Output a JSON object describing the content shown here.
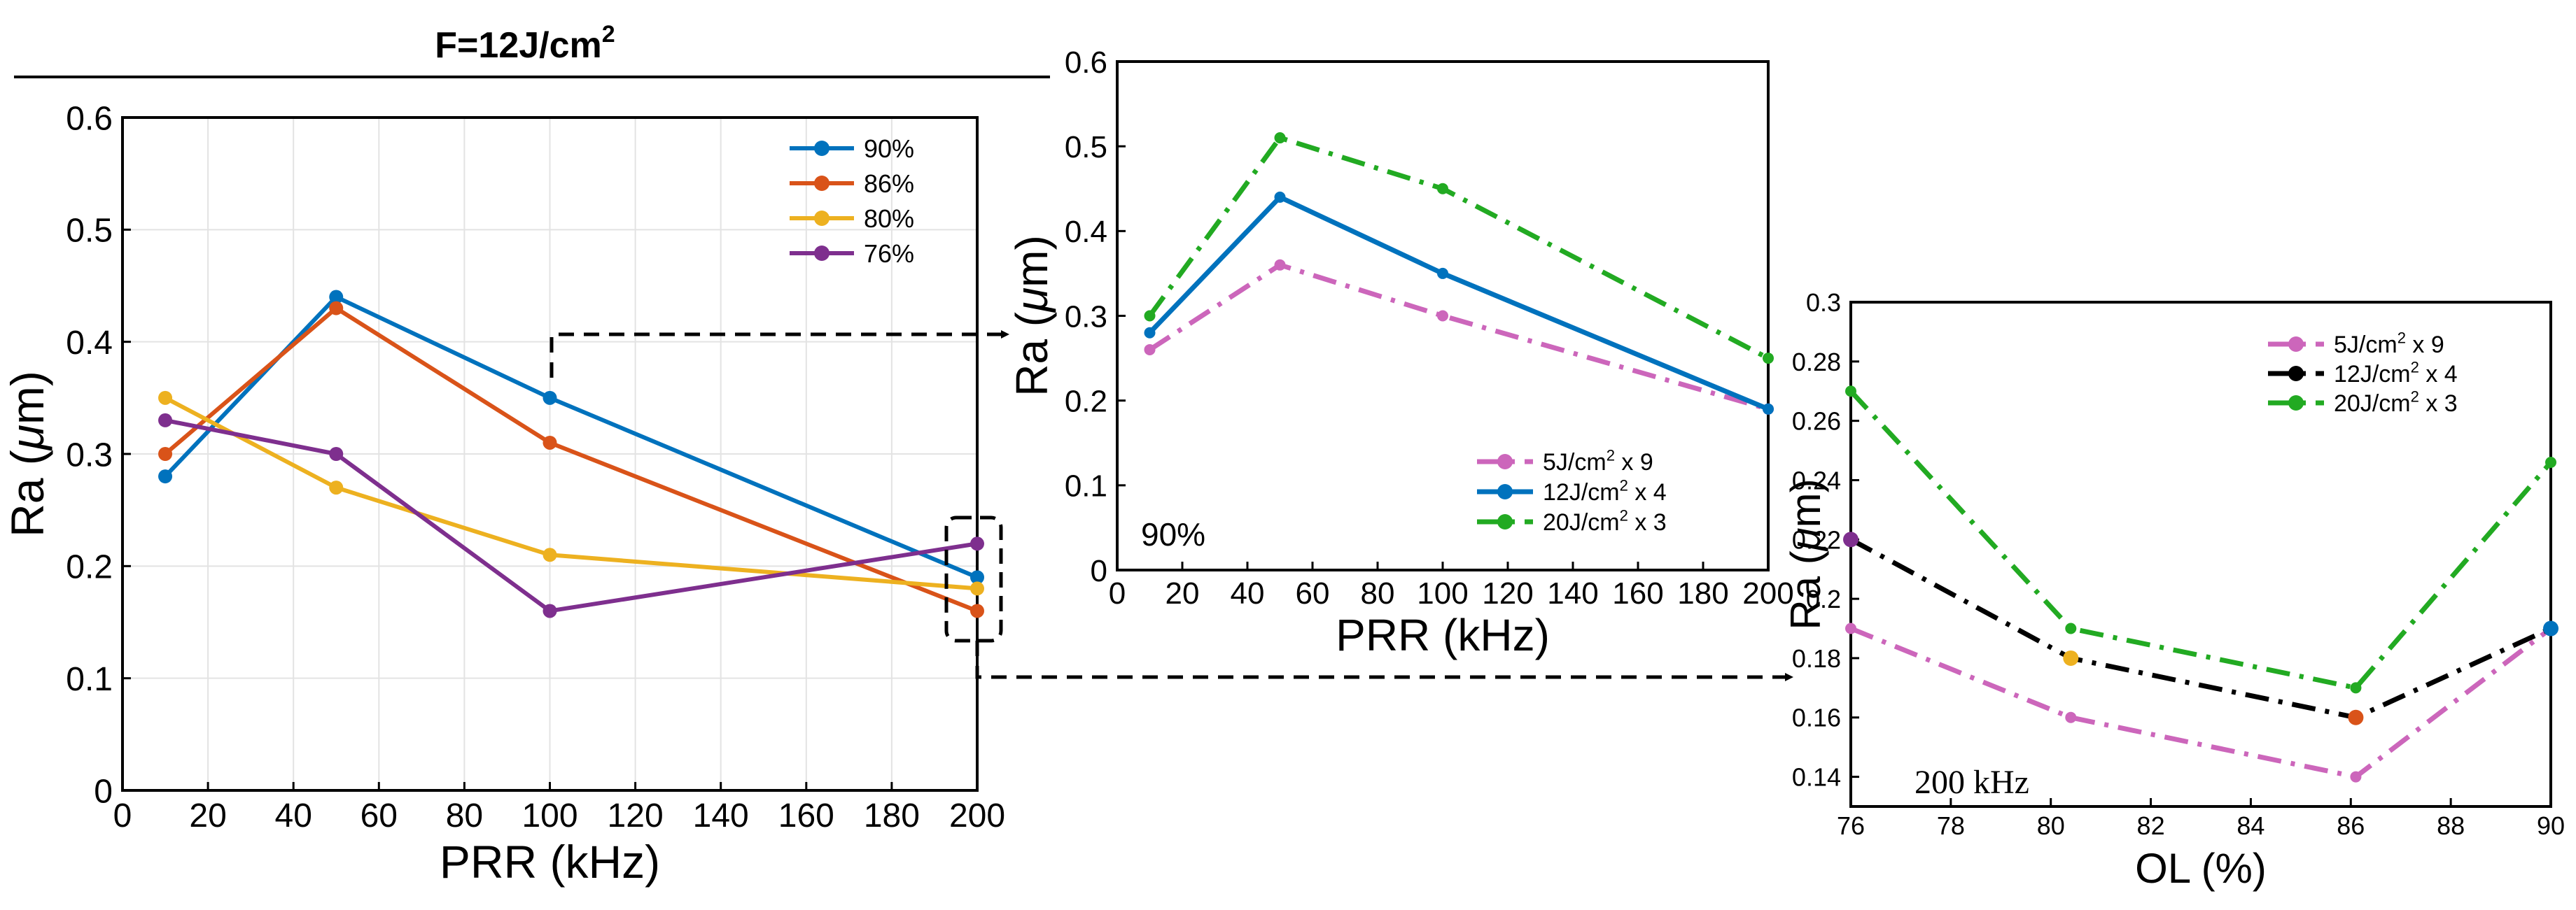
{
  "figure": {
    "header": {
      "prefix": "F=12J/cm",
      "sup": "2"
    }
  },
  "chart_data": [
    {
      "id": "left",
      "type": "line",
      "title": "",
      "xlabel": "PRR (kHz)",
      "ylabel_main": "Ra (",
      "ylabel_mu": "μ",
      "ylabel_tail": "m)",
      "xlim": [
        0,
        200
      ],
      "ylim": [
        0,
        0.6
      ],
      "xticks": [
        0,
        20,
        40,
        60,
        80,
        100,
        120,
        140,
        160,
        180,
        200
      ],
      "xtick_labels": [
        "0",
        "20",
        "40",
        "60",
        "80",
        "100",
        "120",
        "140",
        "160",
        "180",
        "200"
      ],
      "yticks": [
        0,
        0.1,
        0.2,
        0.3,
        0.4,
        0.5,
        0.6
      ],
      "ytick_labels": [
        "0",
        "0.1",
        "0.2",
        "0.3",
        "0.4",
        "0.5",
        "0.6"
      ],
      "grid": true,
      "legend_position": "top-right",
      "series": [
        {
          "name": "90%",
          "color": "#0072BD",
          "dash": "solid",
          "x": [
            10,
            50,
            100,
            200
          ],
          "values": [
            0.28,
            0.44,
            0.35,
            0.19
          ]
        },
        {
          "name": "86%",
          "color": "#D95319",
          "dash": "solid",
          "x": [
            10,
            50,
            100,
            200
          ],
          "values": [
            0.3,
            0.43,
            0.31,
            0.16
          ]
        },
        {
          "name": "80%",
          "color": "#EDB120",
          "dash": "solid",
          "x": [
            10,
            50,
            100,
            200
          ],
          "values": [
            0.35,
            0.27,
            0.21,
            0.18
          ]
        },
        {
          "name": "76%",
          "color": "#7E2F8E",
          "dash": "solid",
          "x": [
            10,
            50,
            100,
            200
          ],
          "values": [
            0.33,
            0.3,
            0.16,
            0.22
          ]
        }
      ]
    },
    {
      "id": "middle",
      "type": "line",
      "title": "",
      "annotation": "90%",
      "xlabel": "PRR (kHz)",
      "ylabel_main": "Ra (",
      "ylabel_mu": "μ",
      "ylabel_tail": "m)",
      "xlim": [
        0,
        200
      ],
      "ylim": [
        0,
        0.6
      ],
      "xticks": [
        0,
        20,
        40,
        60,
        80,
        100,
        120,
        140,
        160,
        180,
        200
      ],
      "xtick_labels": [
        "0",
        "20",
        "40",
        "60",
        "80",
        "100",
        "120",
        "140",
        "160",
        "180",
        "200"
      ],
      "yticks": [
        0,
        0.1,
        0.2,
        0.3,
        0.4,
        0.5,
        0.6
      ],
      "ytick_labels": [
        "0",
        "0.1",
        "0.2",
        "0.3",
        "0.4",
        "0.5",
        "0.6"
      ],
      "grid": false,
      "legend_position": "bottom-right",
      "series": [
        {
          "name": "5J/cm",
          "name_sup": "2",
          "name_tail": " x 9",
          "color": "#CC66BB",
          "dash": "dashdot",
          "x": [
            10,
            50,
            100,
            200
          ],
          "values": [
            0.26,
            0.36,
            0.3,
            0.19
          ]
        },
        {
          "name": "12J/cm",
          "name_sup": "2",
          "name_tail": " x 4",
          "color": "#0072BD",
          "dash": "solid",
          "x": [
            10,
            50,
            100,
            200
          ],
          "values": [
            0.28,
            0.44,
            0.35,
            0.19
          ]
        },
        {
          "name": "20J/cm",
          "name_sup": "2",
          "name_tail": " x 3",
          "color": "#22AA22",
          "dash": "dashdot",
          "x": [
            10,
            50,
            100,
            200
          ],
          "values": [
            0.3,
            0.51,
            0.45,
            0.25
          ]
        }
      ]
    },
    {
      "id": "right",
      "type": "line",
      "title": "",
      "annotation": "200 kHz",
      "xlabel": "OL (%)",
      "ylabel_main": "Ra (",
      "ylabel_mu": "μ",
      "ylabel_tail": "m)",
      "xlim": [
        76,
        90
      ],
      "ylim": [
        0.13,
        0.3
      ],
      "xticks": [
        76,
        78,
        80,
        82,
        84,
        86,
        88,
        90
      ],
      "xtick_labels": [
        "76",
        "78",
        "80",
        "82",
        "84",
        "86",
        "88",
        "90"
      ],
      "yticks": [
        0.14,
        0.16,
        0.18,
        0.2,
        0.22,
        0.24,
        0.26,
        0.28,
        0.3
      ],
      "ytick_labels": [
        "0.14",
        "0.16",
        "0.18",
        "0.2",
        "0.22",
        "0.24",
        "0.26",
        "0.28",
        "0.3"
      ],
      "grid": false,
      "legend_position": "top-right",
      "series": [
        {
          "name": "5J/cm",
          "name_sup": "2",
          "name_tail": " x 9",
          "color": "#CC66BB",
          "dash": "dashdot",
          "x": [
            76,
            80.4,
            86.1,
            90
          ],
          "values": [
            0.19,
            0.16,
            0.14,
            0.19
          ]
        },
        {
          "name": "12J/cm",
          "name_sup": "2",
          "name_tail": " x 4",
          "color": "#000000",
          "dash": "dashdot",
          "x": [
            76,
            80.4,
            86.1,
            90
          ],
          "values": [
            0.22,
            0.18,
            0.16,
            0.19
          ]
        },
        {
          "name": "20J/cm",
          "name_sup": "2",
          "name_tail": " x 3",
          "color": "#22AA22",
          "dash": "dashdot",
          "x": [
            76,
            80.4,
            86.1,
            90
          ],
          "values": [
            0.27,
            0.19,
            0.17,
            0.246
          ]
        }
      ],
      "highlight_markers": [
        {
          "x": 76,
          "value": 0.22,
          "color": "#7E2F8E"
        },
        {
          "x": 80.4,
          "value": 0.18,
          "color": "#EDB120"
        },
        {
          "x": 86.1,
          "value": 0.16,
          "color": "#D95319"
        },
        {
          "x": 90,
          "value": 0.19,
          "color": "#0072BD"
        }
      ]
    }
  ]
}
